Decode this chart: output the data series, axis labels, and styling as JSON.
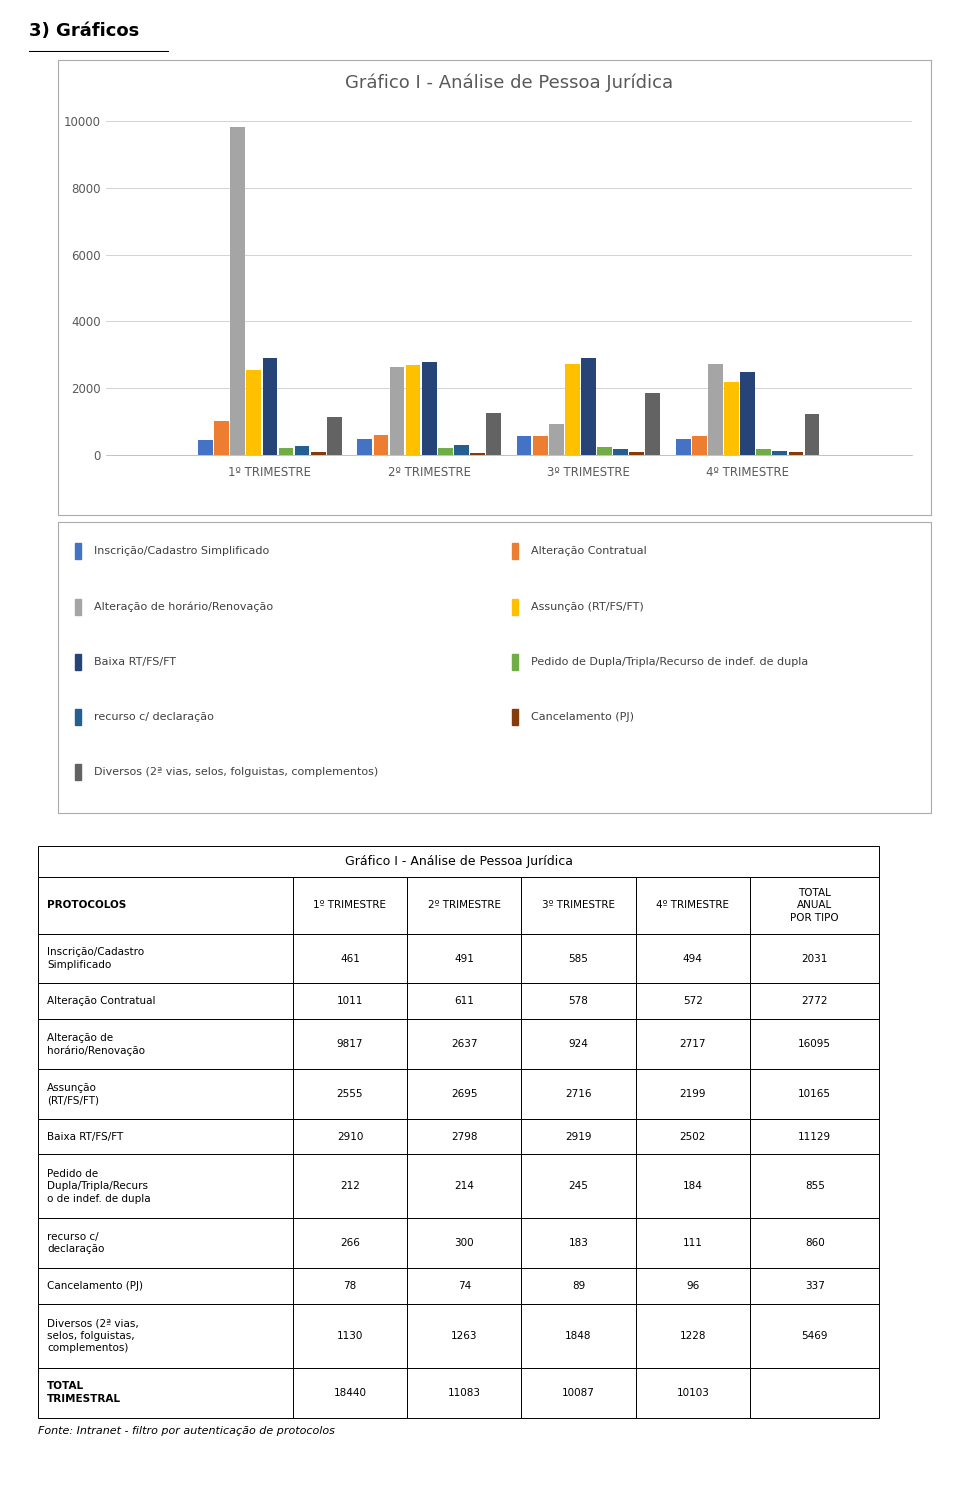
{
  "title_section": "3) Gráficos",
  "chart_title": "Gráfico I - Análise de Pessoa Jurídica",
  "categories": [
    "1º TRIMESTRE",
    "2º TRIMESTRE",
    "3º TRIMESTRE",
    "4º TRIMESTRE"
  ],
  "series": [
    {
      "label": "Inscrição/Cadastro Simplificado",
      "color": "#4472C4",
      "values": [
        461,
        491,
        585,
        494
      ]
    },
    {
      "label": "Alteração Contratual",
      "color": "#ED7D31",
      "values": [
        1011,
        611,
        578,
        572
      ]
    },
    {
      "label": "Alteração de horário/Renovação",
      "color": "#A5A5A5",
      "values": [
        9817,
        2637,
        924,
        2717
      ]
    },
    {
      "label": "Assunção (RT/FS/FT)",
      "color": "#FFC000",
      "values": [
        2555,
        2695,
        2716,
        2199
      ]
    },
    {
      "label": "Baixa RT/FS/FT",
      "color": "#264478",
      "values": [
        2910,
        2798,
        2919,
        2502
      ]
    },
    {
      "label": "Pedido de Dupla/Tripla/Recurso de indef. de dupla",
      "color": "#70AD47",
      "values": [
        212,
        214,
        245,
        184
      ]
    },
    {
      "label": "recurso c/ declaração",
      "color": "#255E91",
      "values": [
        266,
        300,
        183,
        111
      ]
    },
    {
      "label": "Cancelamento (PJ)",
      "color": "#843C0C",
      "values": [
        78,
        74,
        89,
        96
      ]
    },
    {
      "label": "Diversos (2ª vias, selos, folguistas, complementos)",
      "color": "#636363",
      "values": [
        1130,
        1263,
        1848,
        1228
      ]
    }
  ],
  "ylim": [
    0,
    10500
  ],
  "yticks": [
    0,
    2000,
    4000,
    6000,
    8000,
    10000
  ],
  "table_title": "Gráfico I - Análise de Pessoa Jurídica",
  "table_headers": [
    "PROTOCOLOS",
    "1º TRIMESTRE",
    "2º TRIMESTRE",
    "3º TRIMESTRE",
    "4º TRIMESTRE",
    "TOTAL\nANUAL\nPOR TIPO"
  ],
  "table_rows": [
    [
      "Inscrição/Cadastro\nSimplificado",
      "461",
      "491",
      "585",
      "494",
      "2031"
    ],
    [
      "Alteração Contratual",
      "1011",
      "611",
      "578",
      "572",
      "2772"
    ],
    [
      "Alteração de\nhorário/Renovação",
      "9817",
      "2637",
      "924",
      "2717",
      "16095"
    ],
    [
      "Assunção\n(RT/FS/FT)",
      "2555",
      "2695",
      "2716",
      "2199",
      "10165"
    ],
    [
      "Baixa RT/FS/FT",
      "2910",
      "2798",
      "2919",
      "2502",
      "11129"
    ],
    [
      "Pedido de\nDupla/Tripla/Recurs\no de indef. de dupla",
      "212",
      "214",
      "245",
      "184",
      "855"
    ],
    [
      "recurso c/\ndeclaração",
      "266",
      "300",
      "183",
      "111",
      "860"
    ],
    [
      "Cancelamento (PJ)",
      "78",
      "74",
      "89",
      "96",
      "337"
    ],
    [
      "Diversos (2ª vias,\nselos, folguistas,\ncomplementos)",
      "1130",
      "1263",
      "1848",
      "1228",
      "5469"
    ],
    [
      "TOTAL\nTRIMESTRAL",
      "18440",
      "11083",
      "10087",
      "10103",
      ""
    ]
  ],
  "footer": "Fonte: Intranet - filtro por autenticação de protocolos",
  "background_color": "#FFFFFF",
  "chart_bg": "#FFFFFF",
  "grid_color": "#D3D3D3",
  "legend_items_left": [
    {
      "label": "Inscrição/Cadastro Simplificado",
      "color": "#4472C4"
    },
    {
      "label": "Alteração de horário/Renovação",
      "color": "#A5A5A5"
    },
    {
      "label": "Baixa RT/FS/FT",
      "color": "#264478"
    },
    {
      "label": "recurso c/ declaração",
      "color": "#255E91"
    },
    {
      "label": "Diversos (2ª vias, selos, folguistas, complementos)",
      "color": "#636363"
    }
  ],
  "legend_items_right": [
    {
      "label": "Alteração Contratual",
      "color": "#ED7D31"
    },
    {
      "label": "Assunção (RT/FS/FT)",
      "color": "#FFC000"
    },
    {
      "label": "Pedido de Dupla/Tripla/Recurso de indef. de dupla",
      "color": "#70AD47"
    },
    {
      "label": "Cancelamento (PJ)",
      "color": "#843C0C"
    }
  ]
}
